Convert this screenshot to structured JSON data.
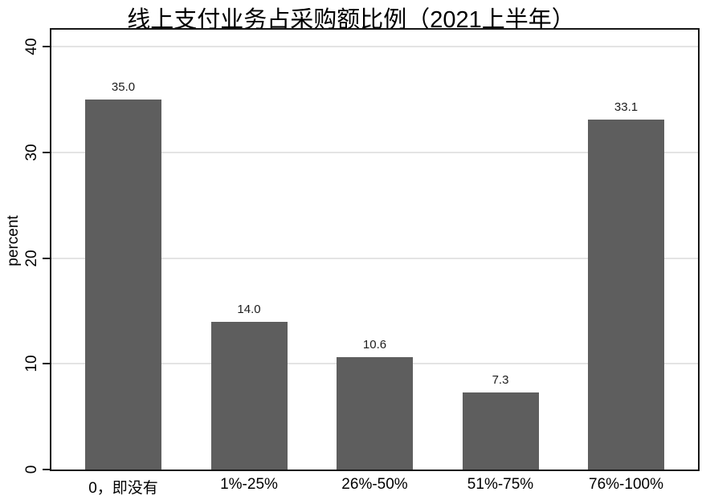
{
  "chart_data": {
    "type": "bar",
    "title": "线上支付业务占采购额比例（2021上半年）",
    "xlabel": "",
    "ylabel": "percent",
    "categories": [
      "0，即没有",
      "1%-25%",
      "26%-50%",
      "51%-75%",
      "76%-100%"
    ],
    "values": [
      35.0,
      14.0,
      10.6,
      7.3,
      33.1
    ],
    "value_labels": [
      "35.0",
      "14.0",
      "10.6",
      "7.3",
      "33.1"
    ],
    "ylim": [
      0,
      40
    ],
    "yticks": [
      0,
      10,
      20,
      30,
      40
    ],
    "grid": "horizontal-light",
    "legend": "none"
  },
  "colors": {
    "bar": "#5e5e5e",
    "gridline": "#e4e4e4",
    "axis": "#161616",
    "text": "#000000",
    "background": "#ffffff"
  }
}
